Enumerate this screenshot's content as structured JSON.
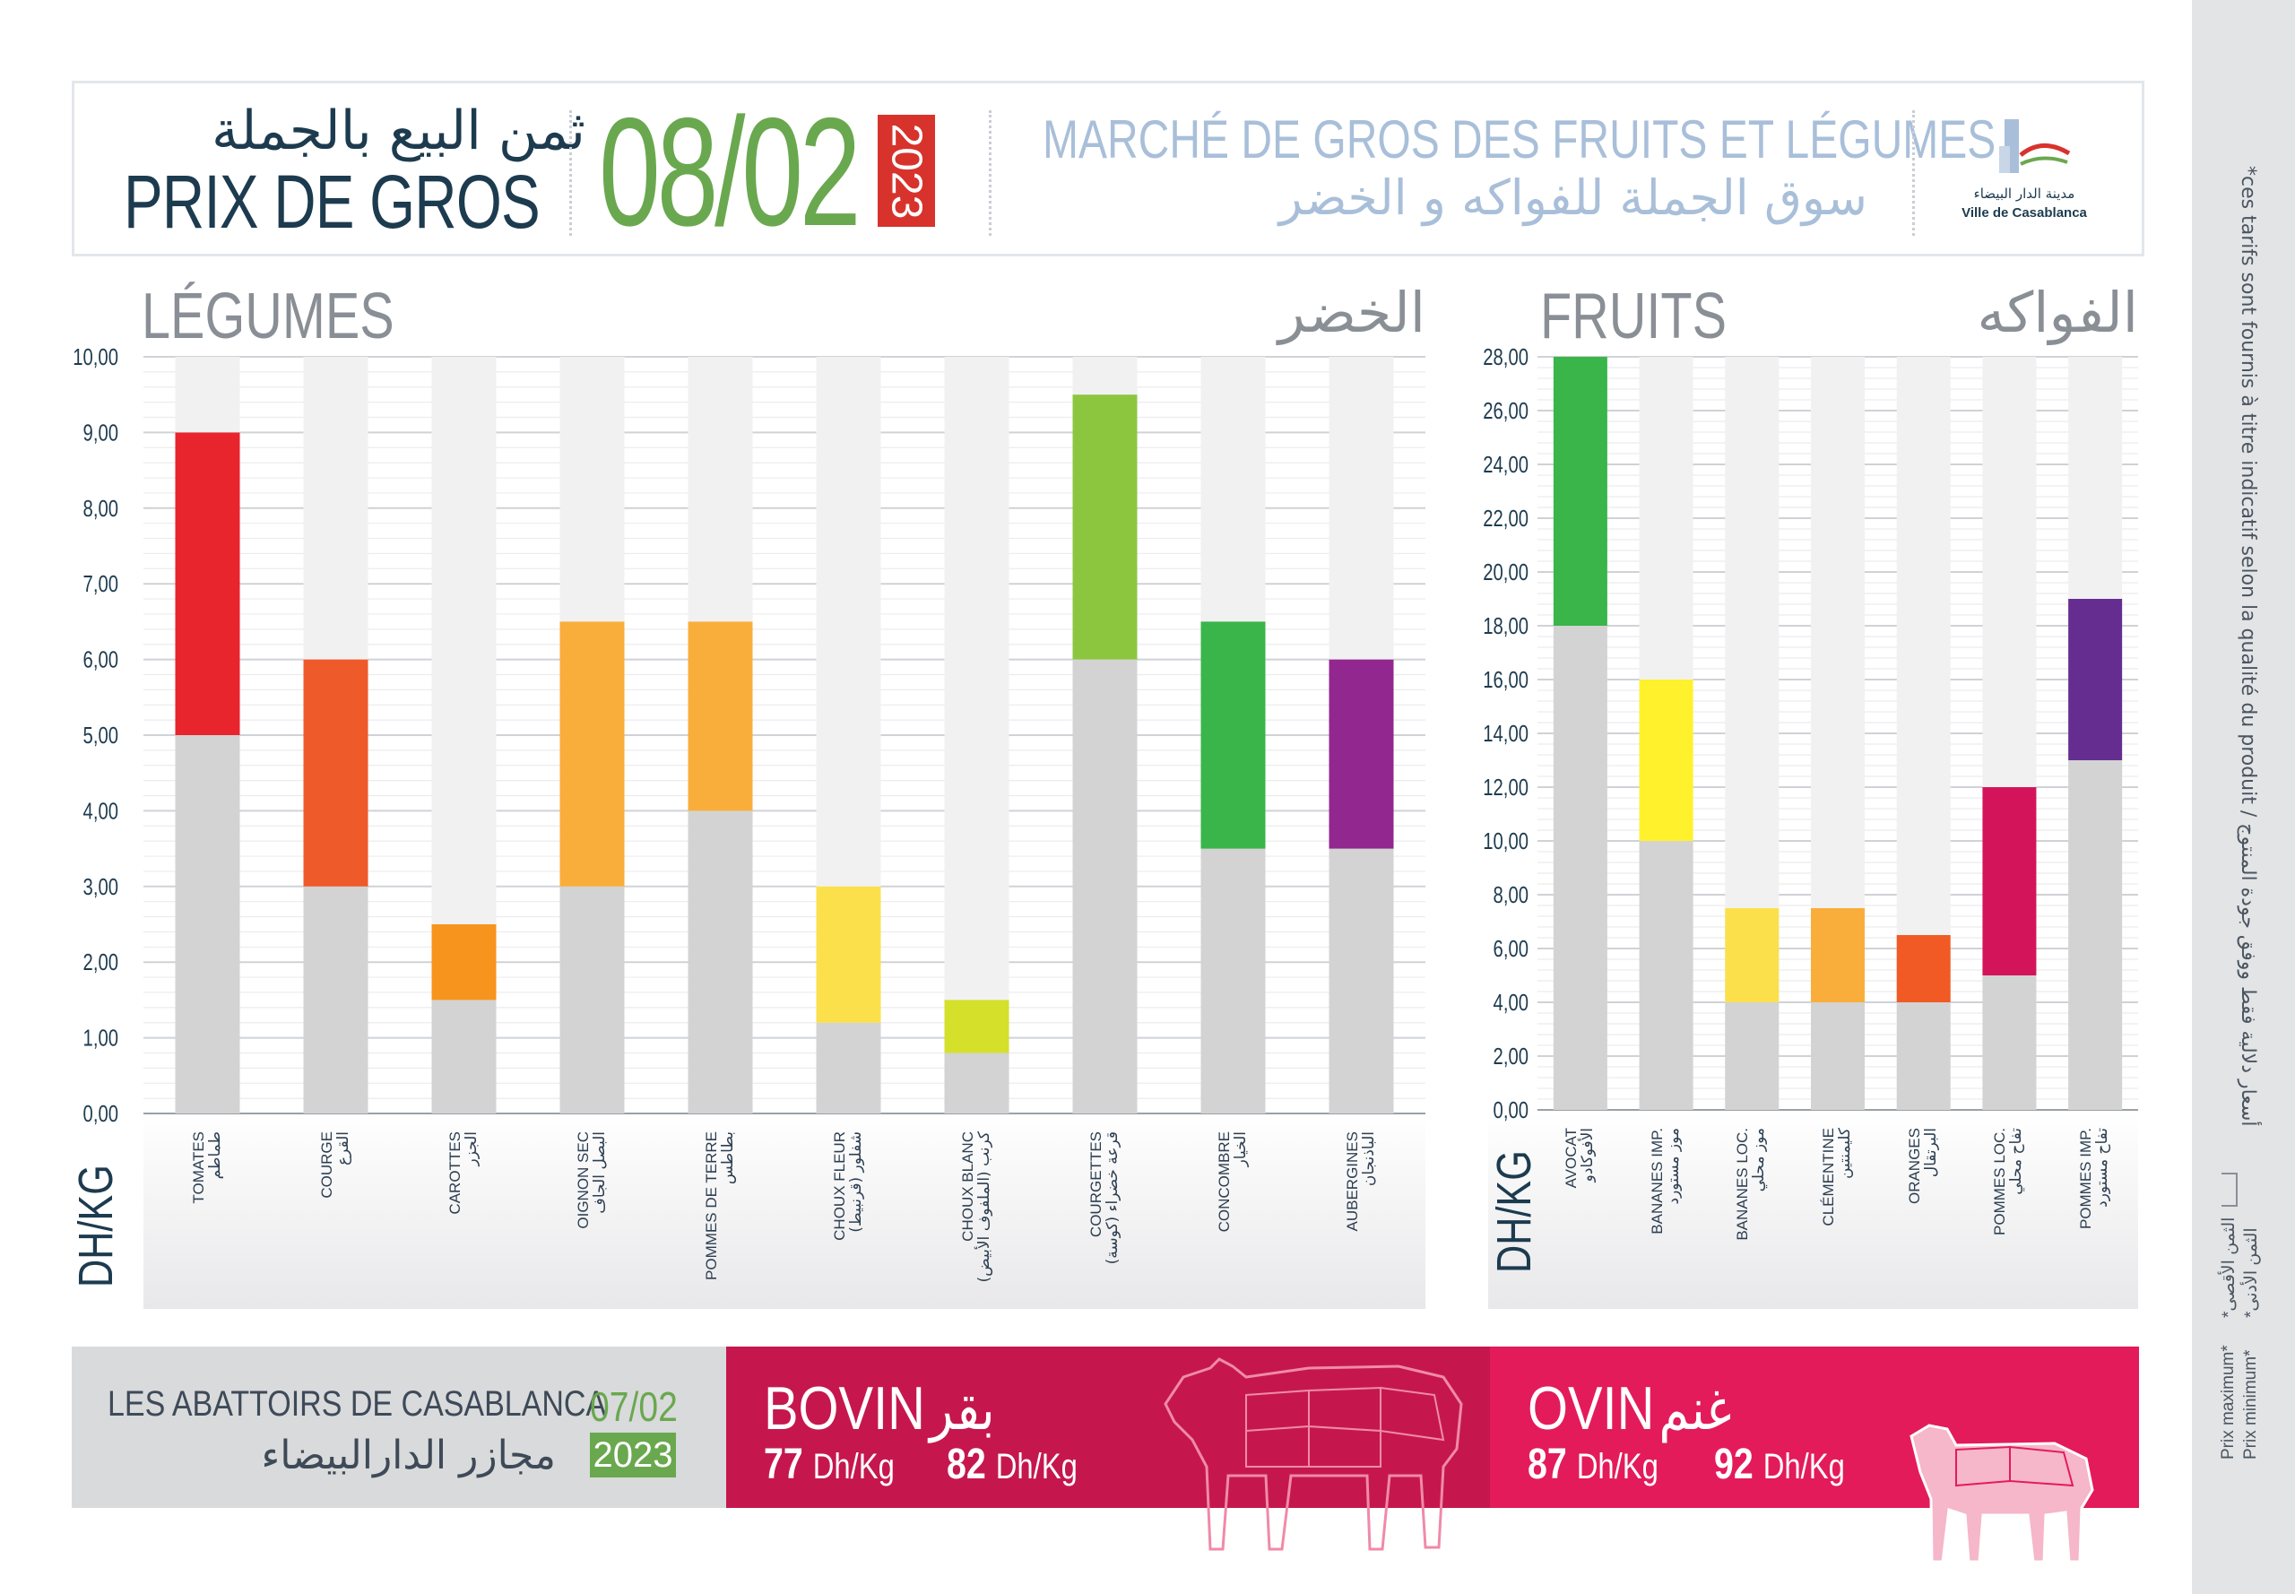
{
  "header": {
    "title_ar": "ثمن البيع بالجملة",
    "title_fr": "PRIX DE GROS",
    "date": "08/02",
    "year": "2023",
    "market_fr": "MARCHÉ DE GROS DES FRUITS ET LÉGUMES",
    "market_ar": "سوق الجملة للفواكه و الخضر",
    "logo_ar": "مدينة الدار البيضاء",
    "logo_fr": "Ville de Casablanca"
  },
  "legumes": {
    "title_fr": "LÉGUMES",
    "title_ar": "الخضر",
    "unit": "DH/KG",
    "labels_fr": [
      "TOMATES",
      "COURGE",
      "CAROTTES",
      "OIGNON SEC",
      "POMMES DE TERRE",
      "CHOUX FLEUR",
      "CHOUX BLANC",
      "COURGETTES",
      "CONCOMBRE",
      "AUBERGINES"
    ],
    "labels_ar": [
      "طماطم",
      "القرع",
      "الجزر",
      "البصل الجاف",
      "بطاطس",
      "شفلور (قرنبيط)",
      "كرنب (الملفوف الأبيض)",
      "قرعة خضراء (كوسة)",
      "الخيار",
      "الباذنجان"
    ]
  },
  "fruits": {
    "title_fr": "FRUITS",
    "title_ar": "الفواكه",
    "unit": "DH/KG",
    "labels_fr": [
      "AVOCAT",
      "BANANES IMP.",
      "BANANES LOC.",
      "CLÉMENTINE",
      "ORANGES",
      "POMMES LOC.",
      "POMMES IMP."
    ],
    "labels_ar": [
      "الأفوكادو",
      "موز مستورد",
      "موز محلي",
      "كليمنتين",
      "البرتقال",
      "تفاح محلي",
      "تفاح مستورد"
    ]
  },
  "chart_data": [
    {
      "type": "bar",
      "title": "LÉGUMES",
      "ylabel": "DH/KG",
      "ylim": [
        0,
        10
      ],
      "yticks": [
        "0,00",
        "1,00",
        "2,00",
        "3,00",
        "4,00",
        "5,00",
        "6,00",
        "7,00",
        "8,00",
        "9,00",
        "10,00"
      ],
      "categories": [
        "TOMATES",
        "COURGE",
        "CAROTTES",
        "OIGNON SEC",
        "POMMES DE TERRE",
        "CHOUX FLEUR",
        "CHOUX BLANC",
        "COURGETTES",
        "CONCOMBRE",
        "AUBERGINES"
      ],
      "series": [
        {
          "name": "Prix minimum",
          "values": [
            5.0,
            3.0,
            1.5,
            3.0,
            4.0,
            1.2,
            0.8,
            6.0,
            3.5,
            3.5
          ]
        },
        {
          "name": "Prix maximum",
          "values": [
            9.0,
            6.0,
            2.5,
            6.5,
            6.5,
            3.0,
            1.5,
            9.5,
            6.5,
            6.0
          ]
        }
      ],
      "colors": [
        "#e8242d",
        "#ef5a2a",
        "#f7941d",
        "#f9ae3b",
        "#f9ae3b",
        "#fbe04c",
        "#d4e02a",
        "#8cc63f",
        "#39b54a",
        "#92278f"
      ],
      "base_color": "#d3d3d3"
    },
    {
      "type": "bar",
      "title": "FRUITS",
      "ylabel": "DH/KG",
      "ylim": [
        0,
        28
      ],
      "yticks": [
        "0,00",
        "2,00",
        "4,00",
        "6,00",
        "8,00",
        "10,00",
        "12,00",
        "14,00",
        "16,00",
        "18,00",
        "20,00",
        "22,00",
        "24,00",
        "26,00",
        "28,00"
      ],
      "categories": [
        "AVOCAT",
        "BANANES IMP.",
        "BANANES LOC.",
        "CLÉMENTINE",
        "ORANGES",
        "POMMES LOC.",
        "POMMES IMP."
      ],
      "series": [
        {
          "name": "Prix minimum",
          "values": [
            18.0,
            10.0,
            4.0,
            4.0,
            4.0,
            5.0,
            13.0
          ]
        },
        {
          "name": "Prix maximum",
          "values": [
            28.0,
            16.0,
            7.5,
            7.5,
            6.5,
            12.0,
            19.0
          ]
        }
      ],
      "colors": [
        "#39b54a",
        "#fff12c",
        "#fbe04c",
        "#f9ae3b",
        "#f15a24",
        "#d4145a",
        "#662d91"
      ],
      "base_color": "#d3d3d3"
    }
  ],
  "abattoirs": {
    "title_fr": "LES ABATTOIRS DE CASABLANCA",
    "title_ar": "مجازر الدارالبيضاء",
    "date": "07/02",
    "year": "2023"
  },
  "bovin": {
    "name_fr": "BOVIN",
    "name_ar": "بقر",
    "min_value": "77",
    "max_value": "82",
    "unit": "Dh/Kg"
  },
  "ovin": {
    "name_fr": "OVIN",
    "name_ar": "غنم",
    "min_value": "87",
    "max_value": "92",
    "unit": "Dh/Kg"
  },
  "side_note": "*ces tarifs sont fournis à titre indicatif selon la qualité du produit / أسعار دلالية فقط ووفق جودة المنتوج",
  "legend": {
    "max_fr": "Prix maximum*",
    "max_ar": "*الثمن الأقصى",
    "min_fr": "Prix minimum*",
    "min_ar": "*الثمن الأدنى"
  },
  "colors": {
    "green": "#6aa84f",
    "red": "#d8322c",
    "navy": "#1d3b4f",
    "bovin": "#c5174e",
    "ovin": "#e31b5b"
  }
}
